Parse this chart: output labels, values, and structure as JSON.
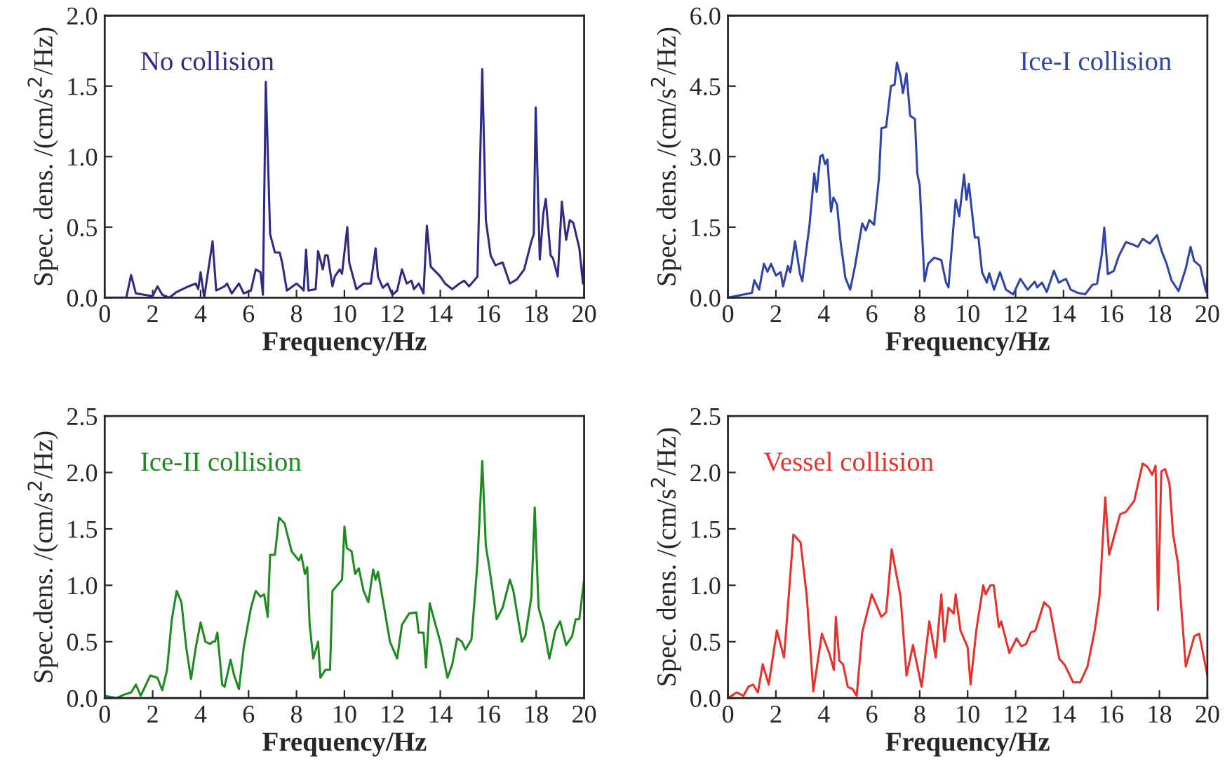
{
  "chart_data": [
    {
      "type": "line",
      "xlabel": "Frequency/Hz",
      "ylabel": "Spec. dens. /(cm/s$^{2}$/Hz)",
      "legend": "top left",
      "grid": false,
      "xlim": [
        0,
        20
      ],
      "xticks": [
        0,
        2,
        4,
        6,
        8,
        10,
        12,
        14,
        16,
        18,
        20
      ],
      "ylim": [
        0,
        2.0
      ],
      "yticks": [
        {
          "value": 0,
          "label": "0.0"
        },
        {
          "value": 0.5,
          "label": "0.5"
        },
        {
          "value": 1.0,
          "label": "1.0"
        },
        {
          "value": 1.5,
          "label": "1.5"
        },
        {
          "value": 2.0,
          "label": "2.0"
        }
      ],
      "series": [
        {
          "name": "No collision",
          "color": "#2e2a85",
          "x": [
            0,
            0.9,
            1.1,
            1.3,
            2.0,
            2.2,
            2.4,
            2.7,
            3.0,
            3.5,
            3.8,
            3.9,
            4.0,
            4.15,
            4.5,
            4.65,
            5.0,
            5.1,
            5.3,
            5.6,
            5.8,
            6.1,
            6.3,
            6.5,
            6.6,
            6.72,
            6.9,
            7.1,
            7.3,
            7.4,
            7.6,
            8.0,
            8.2,
            8.3,
            8.4,
            8.5,
            8.8,
            8.9,
            9.1,
            9.2,
            9.3,
            9.5,
            9.6,
            9.8,
            9.9,
            10.12,
            10.2,
            10.5,
            10.8,
            11.1,
            11.3,
            11.4,
            11.6,
            11.8,
            12.0,
            12.2,
            12.4,
            12.6,
            12.8,
            12.9,
            13.1,
            13.3,
            13.44,
            13.6,
            14.0,
            14.2,
            14.5,
            14.8,
            15.0,
            15.2,
            15.55,
            15.75,
            15.9,
            16.1,
            16.3,
            16.6,
            16.9,
            17.2,
            17.5,
            17.8,
            17.9,
            17.98,
            18.15,
            18.3,
            18.4,
            18.6,
            18.7,
            18.9,
            19.07,
            19.25,
            19.4,
            19.55,
            19.8,
            19.95,
            20.0
          ],
          "values": [
            0,
            0.0,
            0.16,
            0.03,
            0.01,
            0.08,
            0.02,
            0.0,
            0.04,
            0.08,
            0.1,
            0.06,
            0.18,
            0.0,
            0.4,
            0.05,
            0.08,
            0.1,
            0.03,
            0.1,
            0.03,
            0.05,
            0.2,
            0.18,
            0.02,
            1.53,
            0.45,
            0.32,
            0.32,
            0.25,
            0.05,
            0.1,
            0.07,
            0.05,
            0.34,
            0.05,
            0.06,
            0.33,
            0.2,
            0.3,
            0.3,
            0.08,
            0.15,
            0.2,
            0.17,
            0.5,
            0.25,
            0.06,
            0.1,
            0.1,
            0.35,
            0.15,
            0.07,
            0.1,
            0.02,
            0.05,
            0.2,
            0.1,
            0.12,
            0.06,
            0.1,
            0.03,
            0.51,
            0.22,
            0.15,
            0.1,
            0.06,
            0.1,
            0.12,
            0.08,
            0.15,
            1.62,
            0.55,
            0.3,
            0.23,
            0.25,
            0.1,
            0.13,
            0.2,
            0.4,
            0.45,
            1.35,
            0.27,
            0.6,
            0.7,
            0.3,
            0.28,
            0.15,
            0.68,
            0.41,
            0.55,
            0.53,
            0.35,
            0.1,
            0.27
          ]
        }
      ]
    },
    {
      "type": "line",
      "xlabel": "Frequency/Hz",
      "ylabel": "Spec. dens. /(cm/s$^{2}$/Hz)",
      "legend": "top right",
      "grid": false,
      "xlim": [
        0,
        20
      ],
      "xticks": [
        0,
        2,
        4,
        6,
        8,
        10,
        12,
        14,
        16,
        18,
        20
      ],
      "ylim": [
        0,
        6.0
      ],
      "yticks": [
        {
          "value": 0,
          "label": "0.0"
        },
        1.5,
        {
          "value": 3.0,
          "label": "3.0"
        },
        4.5,
        {
          "value": 6.0,
          "label": "6.0"
        }
      ],
      "series": [
        {
          "name": "Ice-I collision",
          "color": "#2e44a8",
          "x": [
            0,
            1.0,
            1.1,
            1.3,
            1.5,
            1.65,
            1.8,
            2.0,
            2.2,
            2.3,
            2.5,
            2.6,
            2.8,
            3.0,
            3.1,
            3.4,
            3.6,
            3.7,
            3.85,
            3.95,
            4.05,
            4.15,
            4.3,
            4.4,
            4.55,
            4.7,
            4.9,
            5.1,
            5.3,
            5.6,
            5.75,
            5.9,
            6.1,
            6.3,
            6.4,
            6.6,
            6.8,
            6.95,
            7.05,
            7.2,
            7.3,
            7.45,
            7.6,
            7.8,
            7.9,
            8.0,
            8.2,
            8.35,
            8.6,
            8.9,
            9.1,
            9.2,
            9.5,
            9.65,
            9.85,
            9.95,
            10.05,
            10.3,
            10.45,
            10.6,
            10.8,
            10.9,
            11.1,
            11.35,
            11.6,
            11.9,
            12.2,
            12.5,
            12.8,
            12.9,
            13.1,
            13.3,
            13.6,
            13.8,
            14.1,
            14.3,
            14.6,
            14.9,
            15.2,
            15.4,
            15.6,
            15.7,
            15.85,
            16.1,
            16.3,
            16.6,
            16.9,
            17.1,
            17.3,
            17.6,
            17.9,
            18.1,
            18.3,
            18.5,
            18.8,
            19.1,
            19.3,
            19.45,
            19.7,
            19.95,
            20.0
          ],
          "values": [
            0,
            0.1,
            0.37,
            0.17,
            0.72,
            0.55,
            0.72,
            0.47,
            0.54,
            0.24,
            0.67,
            0.54,
            1.2,
            0.52,
            0.35,
            1.53,
            2.64,
            2.25,
            3.0,
            3.04,
            2.84,
            2.94,
            1.83,
            2.13,
            1.98,
            1.18,
            0.42,
            0.17,
            0.67,
            1.58,
            1.43,
            1.65,
            1.55,
            2.54,
            3.6,
            3.63,
            4.5,
            4.53,
            5.0,
            4.7,
            4.35,
            4.77,
            3.87,
            3.8,
            2.64,
            2.39,
            0.35,
            0.72,
            0.85,
            0.8,
            0.32,
            0.22,
            2.08,
            1.73,
            2.62,
            2.08,
            2.42,
            1.28,
            1.28,
            0.54,
            0.32,
            0.52,
            0.17,
            0.54,
            0.17,
            0.07,
            0.4,
            0.17,
            0.34,
            0.22,
            0.32,
            0.12,
            0.57,
            0.32,
            0.4,
            0.17,
            0.1,
            0.07,
            0.27,
            0.3,
            0.93,
            1.49,
            0.5,
            0.57,
            0.88,
            1.18,
            1.13,
            1.08,
            1.25,
            1.15,
            1.33,
            0.98,
            0.72,
            0.37,
            0.14,
            0.62,
            1.08,
            0.78,
            0.67,
            0.12,
            0.42
          ]
        }
      ]
    },
    {
      "type": "line",
      "xlabel": "Frequency/Hz",
      "ylabel": "Spec.dens. /(cm/s$^{2}$/Hz)",
      "legend": "top left",
      "grid": false,
      "xlim": [
        0,
        20
      ],
      "xticks": [
        0,
        2,
        4,
        6,
        8,
        10,
        12,
        14,
        16,
        18,
        20
      ],
      "ylim": [
        0,
        2.5
      ],
      "yticks": [
        {
          "value": 0,
          "label": "0.0"
        },
        0.5,
        {
          "value": 1.0,
          "label": "1.0"
        },
        1.5,
        {
          "value": 2.0,
          "label": "2.0"
        },
        2.5
      ],
      "series": [
        {
          "name": "Ice-II collision",
          "color": "#1f8a1f",
          "x": [
            0,
            0.5,
            0.8,
            1.1,
            1.3,
            1.5,
            1.9,
            2.2,
            2.4,
            2.6,
            2.8,
            3.0,
            3.2,
            3.4,
            3.6,
            3.8,
            4.0,
            4.2,
            4.4,
            4.5,
            4.6,
            4.7,
            4.9,
            5.0,
            5.25,
            5.4,
            5.6,
            5.8,
            6.1,
            6.3,
            6.5,
            6.65,
            6.8,
            6.9,
            7.1,
            7.27,
            7.5,
            7.8,
            8.1,
            8.2,
            8.35,
            8.45,
            8.55,
            8.7,
            8.9,
            9.0,
            9.2,
            9.4,
            9.5,
            9.9,
            10.0,
            10.1,
            10.3,
            10.45,
            10.6,
            10.8,
            11.0,
            11.2,
            11.3,
            11.4,
            11.5,
            11.7,
            11.9,
            12.2,
            12.4,
            12.7,
            13.0,
            13.1,
            13.3,
            13.4,
            13.56,
            13.8,
            14.0,
            14.3,
            14.5,
            14.7,
            14.9,
            15.05,
            15.3,
            15.55,
            15.75,
            15.9,
            16.05,
            16.35,
            16.6,
            16.9,
            17.05,
            17.4,
            17.55,
            17.8,
            17.94,
            18.1,
            18.3,
            18.55,
            18.8,
            19.0,
            19.25,
            19.5,
            19.65,
            19.8,
            20.0
          ],
          "values": [
            0.02,
            0.0,
            0.03,
            0.05,
            0.12,
            0.02,
            0.2,
            0.18,
            0.07,
            0.25,
            0.7,
            0.95,
            0.85,
            0.45,
            0.17,
            0.45,
            0.67,
            0.5,
            0.48,
            0.5,
            0.5,
            0.58,
            0.12,
            0.1,
            0.34,
            0.2,
            0.08,
            0.45,
            0.8,
            0.95,
            0.9,
            0.92,
            0.72,
            1.27,
            1.27,
            1.6,
            1.55,
            1.3,
            1.22,
            1.27,
            1.1,
            1.16,
            0.65,
            0.35,
            0.5,
            0.18,
            0.25,
            0.25,
            0.95,
            1.05,
            1.52,
            1.33,
            1.3,
            1.1,
            1.15,
            0.95,
            0.85,
            1.14,
            1.05,
            1.12,
            1.0,
            0.75,
            0.5,
            0.35,
            0.65,
            0.75,
            0.76,
            0.58,
            0.58,
            0.27,
            0.84,
            0.65,
            0.5,
            0.18,
            0.3,
            0.53,
            0.5,
            0.43,
            0.52,
            1.2,
            2.1,
            1.35,
            1.15,
            0.7,
            0.8,
            1.05,
            0.95,
            0.5,
            0.55,
            0.9,
            1.69,
            0.8,
            0.65,
            0.35,
            0.6,
            0.68,
            0.47,
            0.55,
            0.7,
            0.7,
            1.05
          ]
        }
      ]
    },
    {
      "type": "line",
      "xlabel": "Frequency/Hz",
      "ylabel": "Spec. dens. /(cm/s$^{2}$/Hz)",
      "legend": "top left",
      "grid": false,
      "xlim": [
        0,
        20
      ],
      "xticks": [
        0,
        2,
        4,
        6,
        8,
        10,
        12,
        14,
        16,
        18,
        20
      ],
      "ylim": [
        0,
        2.5
      ],
      "yticks": [
        {
          "value": 0,
          "label": "0.0"
        },
        0.5,
        {
          "value": 1.0,
          "label": "1.0"
        },
        1.5,
        {
          "value": 2.0,
          "label": "2.0"
        },
        2.5
      ],
      "series": [
        {
          "name": "Vessel collision",
          "color": "#e8312a",
          "x": [
            0,
            0.36,
            0.65,
            0.85,
            1.05,
            1.25,
            1.45,
            1.7,
            2.04,
            2.34,
            2.73,
            3.03,
            3.29,
            3.56,
            3.92,
            4.22,
            4.42,
            4.5,
            4.65,
            4.8,
            5.0,
            5.2,
            5.37,
            5.6,
            6.0,
            6.4,
            6.6,
            6.83,
            7.2,
            7.45,
            7.72,
            8.08,
            8.4,
            8.67,
            8.9,
            9.03,
            9.2,
            9.42,
            9.5,
            9.7,
            10.0,
            10.12,
            10.36,
            10.65,
            10.75,
            10.95,
            11.09,
            11.3,
            11.4,
            11.74,
            12.04,
            12.24,
            12.44,
            12.63,
            12.83,
            13.19,
            13.43,
            13.82,
            14.06,
            14.4,
            14.7,
            15.0,
            15.3,
            15.5,
            15.74,
            15.9,
            16.36,
            16.6,
            16.95,
            17.3,
            17.5,
            17.7,
            17.84,
            17.94,
            18.08,
            18.24,
            18.42,
            18.57,
            18.77,
            19.1,
            19.46,
            19.66,
            20.0
          ],
          "values": [
            0,
            0.05,
            0.02,
            0.1,
            0.12,
            0.05,
            0.3,
            0.12,
            0.6,
            0.36,
            1.45,
            1.38,
            0.9,
            0.06,
            0.57,
            0.4,
            0.25,
            0.72,
            0.33,
            0.3,
            0.1,
            0.08,
            0.02,
            0.58,
            0.92,
            0.72,
            0.76,
            1.32,
            0.9,
            0.2,
            0.47,
            0.1,
            0.68,
            0.36,
            0.92,
            0.5,
            0.8,
            0.75,
            0.92,
            0.6,
            0.45,
            0.12,
            0.6,
            1.0,
            0.92,
            1.0,
            1.0,
            0.63,
            0.68,
            0.4,
            0.53,
            0.46,
            0.48,
            0.58,
            0.6,
            0.85,
            0.8,
            0.35,
            0.29,
            0.14,
            0.14,
            0.28,
            0.6,
            0.9,
            1.78,
            1.27,
            1.63,
            1.65,
            1.75,
            2.08,
            2.05,
            1.98,
            2.06,
            0.78,
            2.01,
            2.03,
            1.9,
            1.45,
            1.2,
            0.28,
            0.55,
            0.57,
            0.2
          ]
        }
      ]
    }
  ]
}
